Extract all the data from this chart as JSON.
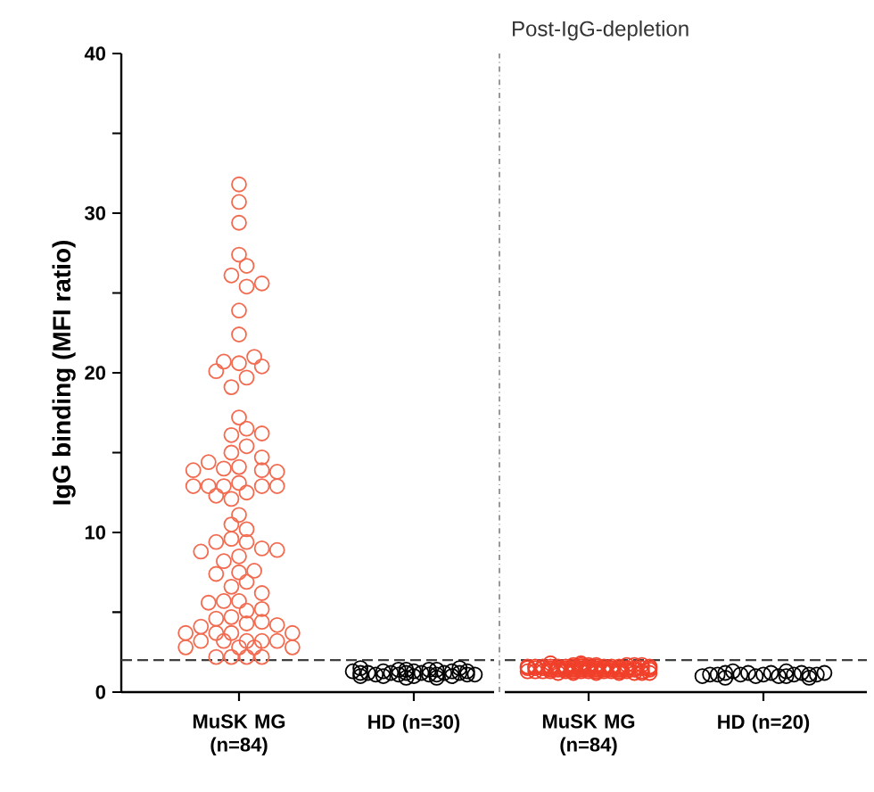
{
  "chart_data": [
    {
      "type": "scatter",
      "ylabel": "IgG binding (MFI ratio)",
      "categories": [
        "MuSK MG (n=84)",
        "HD (n=30)"
      ],
      "ylim": [
        0,
        40
      ],
      "yticks": [
        0,
        {
          "value": 5,
          "label": null
        },
        10,
        {
          "value": 15,
          "label": null
        },
        20,
        {
          "value": 25,
          "label": null
        },
        30,
        {
          "value": 35,
          "label": null
        },
        40
      ],
      "marker": "circle",
      "ref_lines": [
        {
          "axis": "y",
          "value": 2,
          "line_style": "dashed",
          "color": "#404040"
        }
      ],
      "series": [
        {
          "color": "#f26b50",
          "x": [
            "MuSK MG (n=84)",
            "MuSK MG (n=84)",
            "MuSK MG (n=84)",
            "MuSK MG (n=84)",
            "MuSK MG (n=84)",
            "MuSK MG (n=84)",
            "MuSK MG (n=84)",
            "MuSK MG (n=84)",
            "MuSK MG (n=84)",
            "MuSK MG (n=84)",
            "MuSK MG (n=84)",
            "MuSK MG (n=84)",
            "MuSK MG (n=84)",
            "MuSK MG (n=84)",
            "MuSK MG (n=84)",
            "MuSK MG (n=84)",
            "MuSK MG (n=84)",
            "MuSK MG (n=84)",
            "MuSK MG (n=84)",
            "MuSK MG (n=84)",
            "MuSK MG (n=84)",
            "MuSK MG (n=84)",
            "MuSK MG (n=84)",
            "MuSK MG (n=84)",
            "MuSK MG (n=84)",
            "MuSK MG (n=84)",
            "MuSK MG (n=84)",
            "MuSK MG (n=84)",
            "MuSK MG (n=84)",
            "MuSK MG (n=84)",
            "MuSK MG (n=84)",
            "MuSK MG (n=84)",
            "MuSK MG (n=84)",
            "MuSK MG (n=84)",
            "MuSK MG (n=84)",
            "MuSK MG (n=84)",
            "MuSK MG (n=84)",
            "MuSK MG (n=84)",
            "MuSK MG (n=84)",
            "MuSK MG (n=84)",
            "MuSK MG (n=84)",
            "MuSK MG (n=84)",
            "MuSK MG (n=84)",
            "MuSK MG (n=84)",
            "MuSK MG (n=84)",
            "MuSK MG (n=84)",
            "MuSK MG (n=84)",
            "MuSK MG (n=84)",
            "MuSK MG (n=84)",
            "MuSK MG (n=84)",
            "MuSK MG (n=84)",
            "MuSK MG (n=84)",
            "MuSK MG (n=84)",
            "MuSK MG (n=84)",
            "MuSK MG (n=84)",
            "MuSK MG (n=84)",
            "MuSK MG (n=84)",
            "MuSK MG (n=84)",
            "MuSK MG (n=84)",
            "MuSK MG (n=84)",
            "MuSK MG (n=84)",
            "MuSK MG (n=84)",
            "MuSK MG (n=84)",
            "MuSK MG (n=84)",
            "MuSK MG (n=84)",
            "MuSK MG (n=84)",
            "MuSK MG (n=84)",
            "MuSK MG (n=84)",
            "MuSK MG (n=84)",
            "MuSK MG (n=84)",
            "MuSK MG (n=84)",
            "MuSK MG (n=84)",
            "MuSK MG (n=84)",
            "MuSK MG (n=84)",
            "MuSK MG (n=84)",
            "MuSK MG (n=84)",
            "MuSK MG (n=84)",
            "MuSK MG (n=84)",
            "MuSK MG (n=84)",
            "MuSK MG (n=84)",
            "MuSK MG (n=84)",
            "MuSK MG (n=84)",
            "MuSK MG (n=84)",
            "MuSK MG (n=84)"
          ],
          "values": [
            31.8,
            30.7,
            29.4,
            27.4,
            26.7,
            26.1,
            25.4,
            25.6,
            23.9,
            22.4,
            20.6,
            21.0,
            20.7,
            20.4,
            20.1,
            19.7,
            19.1,
            17.2,
            16.5,
            16.1,
            15.4,
            16.2,
            15.0,
            14.7,
            14.1,
            14.0,
            14.4,
            13.9,
            13.8,
            13.9,
            13.1,
            12.5,
            12.9,
            12.9,
            12.9,
            12.9,
            12.9,
            12.1,
            12.3,
            11.1,
            10.2,
            10.5,
            9.6,
            9.4,
            9.0,
            9.4,
            8.9,
            8.5,
            8.8,
            8.2,
            7.5,
            7.6,
            7.4,
            6.9,
            6.6,
            6.2,
            5.7,
            5.7,
            5.6,
            5.1,
            5.2,
            4.7,
            4.6,
            4.3,
            4.4,
            4.2,
            4.1,
            3.7,
            3.7,
            3.7,
            3.7,
            3.2,
            3.2,
            3.2,
            3.2,
            3.2,
            2.8,
            2.8,
            2.8,
            2.8,
            2.2,
            2.2,
            2.2,
            2.2
          ]
        },
        {
          "color": "#000000",
          "x": [
            "HD (n=30)",
            "HD (n=30)",
            "HD (n=30)",
            "HD (n=30)",
            "HD (n=30)",
            "HD (n=30)",
            "HD (n=30)",
            "HD (n=30)",
            "HD (n=30)",
            "HD (n=30)",
            "HD (n=30)",
            "HD (n=30)",
            "HD (n=30)",
            "HD (n=30)",
            "HD (n=30)",
            "HD (n=30)",
            "HD (n=30)",
            "HD (n=30)",
            "HD (n=30)",
            "HD (n=30)",
            "HD (n=30)",
            "HD (n=30)",
            "HD (n=30)",
            "HD (n=30)",
            "HD (n=30)",
            "HD (n=30)",
            "HD (n=30)",
            "HD (n=30)",
            "HD (n=30)",
            "HD (n=30)"
          ],
          "values": [
            1.3,
            1.1,
            1.4,
            1.2,
            1.0,
            1.5,
            1.2,
            1.1,
            1.3,
            0.9,
            1.2,
            1.4,
            1.0,
            1.1,
            1.3,
            1.2,
            1.5,
            1.0,
            1.2,
            1.1,
            1.4,
            1.3,
            0.9,
            1.2,
            1.1,
            1.3,
            1.0,
            1.2,
            1.4,
            1.1
          ]
        }
      ]
    },
    {
      "type": "scatter",
      "title": "Post-IgG-depletion",
      "categories": [
        "MuSK MG (n=84)",
        "HD (n=20)"
      ],
      "ylim": [
        0,
        40
      ],
      "tick_labels": "x",
      "marker": "circle",
      "ref_lines": [
        {
          "axis": "y",
          "value": 2,
          "line_style": "dashed",
          "color": "#404040"
        }
      ],
      "series": [
        {
          "color": "#f0402a",
          "x": [
            "MuSK MG (n=84)",
            "MuSK MG (n=84)",
            "MuSK MG (n=84)",
            "MuSK MG (n=84)",
            "MuSK MG (n=84)",
            "MuSK MG (n=84)",
            "MuSK MG (n=84)",
            "MuSK MG (n=84)",
            "MuSK MG (n=84)",
            "MuSK MG (n=84)",
            "MuSK MG (n=84)",
            "MuSK MG (n=84)",
            "MuSK MG (n=84)",
            "MuSK MG (n=84)",
            "MuSK MG (n=84)",
            "MuSK MG (n=84)",
            "MuSK MG (n=84)",
            "MuSK MG (n=84)",
            "MuSK MG (n=84)",
            "MuSK MG (n=84)",
            "MuSK MG (n=84)",
            "MuSK MG (n=84)",
            "MuSK MG (n=84)",
            "MuSK MG (n=84)",
            "MuSK MG (n=84)",
            "MuSK MG (n=84)",
            "MuSK MG (n=84)",
            "MuSK MG (n=84)",
            "MuSK MG (n=84)",
            "MuSK MG (n=84)",
            "MuSK MG (n=84)",
            "MuSK MG (n=84)",
            "MuSK MG (n=84)",
            "MuSK MG (n=84)",
            "MuSK MG (n=84)",
            "MuSK MG (n=84)",
            "MuSK MG (n=84)",
            "MuSK MG (n=84)",
            "MuSK MG (n=84)",
            "MuSK MG (n=84)",
            "MuSK MG (n=84)",
            "MuSK MG (n=84)",
            "MuSK MG (n=84)",
            "MuSK MG (n=84)",
            "MuSK MG (n=84)",
            "MuSK MG (n=84)",
            "MuSK MG (n=84)",
            "MuSK MG (n=84)",
            "MuSK MG (n=84)",
            "MuSK MG (n=84)",
            "MuSK MG (n=84)",
            "MuSK MG (n=84)",
            "MuSK MG (n=84)",
            "MuSK MG (n=84)",
            "MuSK MG (n=84)",
            "MuSK MG (n=84)",
            "MuSK MG (n=84)",
            "MuSK MG (n=84)",
            "MuSK MG (n=84)",
            "MuSK MG (n=84)",
            "MuSK MG (n=84)",
            "MuSK MG (n=84)",
            "MuSK MG (n=84)",
            "MuSK MG (n=84)",
            "MuSK MG (n=84)",
            "MuSK MG (n=84)",
            "MuSK MG (n=84)",
            "MuSK MG (n=84)",
            "MuSK MG (n=84)",
            "MuSK MG (n=84)",
            "MuSK MG (n=84)",
            "MuSK MG (n=84)",
            "MuSK MG (n=84)",
            "MuSK MG (n=84)",
            "MuSK MG (n=84)",
            "MuSK MG (n=84)",
            "MuSK MG (n=84)",
            "MuSK MG (n=84)",
            "MuSK MG (n=84)",
            "MuSK MG (n=84)",
            "MuSK MG (n=84)",
            "MuSK MG (n=84)",
            "MuSK MG (n=84)",
            "MuSK MG (n=84)"
          ],
          "values": [
            1.5,
            1.3,
            1.7,
            null,
            1.6,
            1.2,
            1.5,
            1.8,
            null,
            1.3,
            1.6,
            1.5,
            1.4,
            1.6,
            1.3,
            1.5,
            1.7,
            1.2,
            null,
            1.5,
            1.6,
            1.3,
            1.5,
            1.4,
            1.6,
            1.5,
            1.2,
            1.7,
            1.4,
            1.3,
            1.5,
            1.6,
            1.4,
            1.5,
            1.3,
            1.8,
            1.5,
            null,
            1.6,
            1.2,
            1.5,
            1.3,
            1.4,
            1.7,
            null,
            1.6,
            1.3,
            1.4,
            null,
            1.2,
            1.6,
            null,
            null,
            1.3,
            1.7,
            null,
            1.4,
            1.6,
            1.3,
            null,
            1.4,
            1.2,
            1.6,
            1.5,
            1.3,
            1.7,
            1.4,
            1.5,
            1.6,
            1.3,
            1.4,
            1.5,
            1.2,
            1.6,
            1.5,
            1.4,
            1.3,
            1.7,
            1.5,
            1.4,
            1.6,
            1.3,
            1.5,
            1.4
          ]
        },
        {
          "color": "#000000",
          "x": [
            "HD (n=20)",
            "HD (n=20)",
            "HD (n=20)",
            "HD (n=20)",
            "HD (n=20)",
            "HD (n=20)",
            "HD (n=20)",
            "HD (n=20)",
            "HD (n=20)",
            "HD (n=20)",
            "HD (n=20)",
            "HD (n=20)",
            "HD (n=20)",
            "HD (n=20)",
            "HD (n=20)",
            "HD (n=20)",
            "HD (n=20)",
            "HD (n=20)",
            "HD (n=20)",
            "HD (n=20)"
          ],
          "values": [
            1.1,
            1.0,
            1.2,
            1.1,
            1.3,
            0.9,
            1.1,
            1.2,
            1.0,
            1.1,
            1.2,
            1.3,
            1.0,
            1.1,
            0.9,
            1.2,
            1.1,
            1.0,
            1.2,
            1.1
          ]
        }
      ]
    }
  ]
}
